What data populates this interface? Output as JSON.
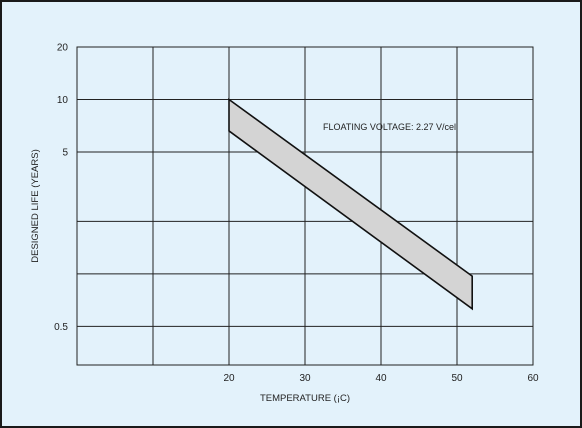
{
  "colors": {
    "background": "#e3f2fb",
    "frame": "#1a1a1a",
    "grid": "#222222",
    "band_fill": "#d4d4d4",
    "band_stroke": "#111111"
  },
  "chart_data": {
    "type": "area",
    "title": "",
    "xlabel": "TEMPERATURE (¡C)",
    "ylabel": "DESIGNED LIFE (YEARS)",
    "x_scale": "linear",
    "y_scale": "log",
    "xlim": [
      0,
      60
    ],
    "ylim": [
      0.3,
      20
    ],
    "x_ticks": [
      20,
      30,
      40,
      50,
      60
    ],
    "x_tick_labels": [
      "20",
      "30",
      "40",
      "50",
      "60"
    ],
    "x_gridlines": [
      10,
      20,
      30,
      40,
      50,
      60
    ],
    "y_ticks": [
      0.5,
      5,
      10,
      20
    ],
    "y_tick_labels": [
      "0.5",
      "5",
      "10",
      "20"
    ],
    "y_gridlines": [
      0.5,
      1,
      2,
      5,
      10,
      20
    ],
    "grid": true,
    "annotation": "FLOATING VOLTAGE: 2.27 V/cell",
    "band": {
      "upper": [
        {
          "x": 20,
          "y": 10
        },
        {
          "x": 52,
          "y": 0.97
        }
      ],
      "lower": [
        {
          "x": 20,
          "y": 6.6
        },
        {
          "x": 52,
          "y": 0.63
        }
      ]
    }
  }
}
